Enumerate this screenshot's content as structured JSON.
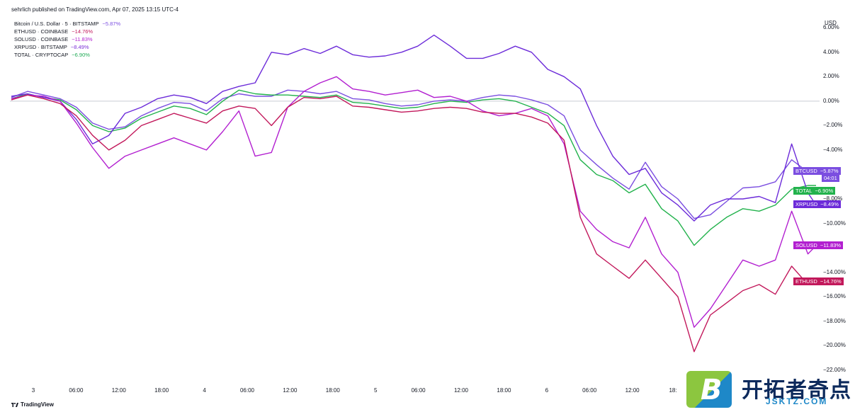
{
  "header": {
    "publish_text": "sehrlich published on TradingView.com, Apr 07, 2025 13:15 UTC-4"
  },
  "axis_unit": "USD",
  "legend": [
    {
      "label": "Bitcoin / U.S. Dollar · 5 · BITSTAMP",
      "value": "−5.87%",
      "color": "#7b4ee0"
    },
    {
      "label": "ETHUSD · COINBASE",
      "value": "−14.76%",
      "color": "#c2185b"
    },
    {
      "label": "SOLUSD · COINBASE",
      "value": "−11.83%",
      "color": "#b020d0"
    },
    {
      "label": "XRPUSD · BITSTAMP",
      "value": "−8.49%",
      "color": "#7a2fd6"
    },
    {
      "label": "TOTAL · CRYPTOCAP",
      "value": "−6.90%",
      "color": "#1faa55"
    }
  ],
  "badges": [
    {
      "ticker": "BTCUSD",
      "value": "−5.87%",
      "extra": "04:01",
      "color": "#7b4ee0"
    },
    {
      "ticker": "TOTAL",
      "value": "−6.90%",
      "color": "#22b24c"
    },
    {
      "ticker": "XRPUSD",
      "value": "−8.49%",
      "color": "#6c2bd9"
    },
    {
      "ticker": "SOLUSD",
      "value": "−11.83%",
      "color": "#b21fd0"
    },
    {
      "ticker": "ETHUSD",
      "value": "−14.76%",
      "color": "#c2185b"
    }
  ],
  "footer": {
    "brand": "TradingView"
  },
  "watermark": {
    "letter": "B",
    "cn_text": "开拓者奇点",
    "url": "JSKTZ.COM"
  },
  "chart_data": {
    "type": "line",
    "ylabel": "USD",
    "ylim": [
      -23,
      7
    ],
    "y_ticks": [
      "6.00%",
      "4.00%",
      "2.00%",
      "0.00%",
      "−2.00%",
      "−4.00%",
      "−8.00%",
      "−10.00%",
      "−14.00%",
      "−16.00%",
      "−18.00%",
      "−20.00%",
      "−22.00%"
    ],
    "x_ticks": [
      "3",
      "06:00",
      "12:00",
      "18:00",
      "4",
      "06:00",
      "12:00",
      "18:00",
      "5",
      "06:00",
      "12:00",
      "18:00",
      "6",
      "06:00",
      "12:00",
      "18:"
    ],
    "x_range": [
      0,
      99
    ],
    "zero_line": 0,
    "series": [
      {
        "name": "BTCUSD",
        "color": "#7b4ee0",
        "x": [
          0,
          2,
          4,
          6,
          8,
          10,
          12,
          14,
          16,
          18,
          20,
          22,
          24,
          26,
          28,
          30,
          32,
          34,
          36,
          38,
          40,
          42,
          44,
          46,
          48,
          50,
          52,
          54,
          56,
          58,
          60,
          62,
          64,
          66,
          68,
          70,
          72,
          74,
          76,
          78,
          80,
          82,
          84,
          86,
          88,
          90,
          92,
          94,
          96,
          98,
          99
        ],
        "values": [
          0.3,
          0.8,
          0.5,
          0.2,
          -0.5,
          -1.8,
          -2.3,
          -2.1,
          -1.2,
          -0.6,
          -0.1,
          -0.2,
          -0.8,
          0.2,
          0.6,
          0.4,
          0.4,
          0.9,
          0.8,
          0.6,
          0.8,
          0.2,
          0.1,
          -0.2,
          -0.4,
          -0.3,
          0.0,
          0.1,
          0.0,
          0.3,
          0.5,
          0.4,
          0.1,
          -0.3,
          -1.2,
          -4.0,
          -5.2,
          -6.3,
          -7.2,
          -5.0,
          -7.0,
          -8.0,
          -9.6,
          -9.3,
          -8.2,
          -7.1,
          -7.0,
          -6.6,
          -4.8,
          -5.8,
          -5.87
        ]
      },
      {
        "name": "TOTAL",
        "color": "#22b24c",
        "x": [
          0,
          2,
          4,
          6,
          8,
          10,
          12,
          14,
          16,
          18,
          20,
          22,
          24,
          26,
          28,
          30,
          32,
          34,
          36,
          38,
          40,
          42,
          44,
          46,
          48,
          50,
          52,
          54,
          56,
          58,
          60,
          62,
          64,
          66,
          68,
          70,
          72,
          74,
          76,
          78,
          80,
          82,
          84,
          86,
          88,
          90,
          92,
          94,
          96,
          98,
          99
        ],
        "values": [
          0.2,
          0.6,
          0.3,
          0.1,
          -0.7,
          -2.0,
          -2.5,
          -2.2,
          -1.4,
          -0.9,
          -0.4,
          -0.6,
          -1.1,
          0.0,
          0.9,
          0.6,
          0.5,
          0.5,
          0.4,
          0.3,
          0.5,
          -0.1,
          -0.2,
          -0.4,
          -0.6,
          -0.5,
          -0.2,
          0.0,
          -0.1,
          0.1,
          0.2,
          0.0,
          -0.5,
          -1.0,
          -2.0,
          -4.8,
          -6.0,
          -6.5,
          -7.5,
          -6.8,
          -8.8,
          -9.8,
          -11.8,
          -10.5,
          -9.5,
          -8.8,
          -9.0,
          -8.5,
          -7.2,
          -6.9,
          -6.9
        ]
      },
      {
        "name": "XRPUSD",
        "color": "#6c2bd9",
        "x": [
          0,
          2,
          4,
          6,
          8,
          10,
          12,
          14,
          16,
          18,
          20,
          22,
          24,
          26,
          28,
          30,
          32,
          34,
          36,
          38,
          40,
          42,
          44,
          46,
          48,
          50,
          52,
          54,
          56,
          58,
          60,
          62,
          64,
          66,
          68,
          70,
          72,
          74,
          76,
          78,
          80,
          82,
          84,
          86,
          88,
          90,
          92,
          94,
          96,
          98,
          99
        ],
        "values": [
          0.4,
          0.6,
          0.3,
          0.0,
          -1.5,
          -3.5,
          -2.8,
          -1.0,
          -0.5,
          0.2,
          0.5,
          0.3,
          -0.2,
          0.8,
          1.2,
          1.5,
          4.0,
          3.8,
          4.3,
          3.9,
          4.5,
          3.8,
          3.6,
          3.7,
          4.0,
          4.5,
          5.4,
          4.5,
          3.5,
          3.5,
          3.9,
          4.5,
          4.0,
          2.6,
          2.0,
          1.0,
          -2.0,
          -4.5,
          -6.0,
          -5.5,
          -7.5,
          -8.5,
          -9.8,
          -8.5,
          -8.0,
          -8.0,
          -7.8,
          -8.3,
          -3.5,
          -7.5,
          -8.49
        ]
      },
      {
        "name": "SOLUSD",
        "color": "#b21fd0",
        "x": [
          0,
          2,
          4,
          6,
          8,
          10,
          12,
          14,
          16,
          18,
          20,
          22,
          24,
          26,
          28,
          30,
          32,
          34,
          36,
          38,
          40,
          42,
          44,
          46,
          48,
          50,
          52,
          54,
          56,
          58,
          60,
          62,
          64,
          66,
          68,
          70,
          72,
          74,
          76,
          78,
          80,
          82,
          84,
          86,
          88,
          90,
          92,
          94,
          96,
          98,
          99
        ],
        "values": [
          0.2,
          0.5,
          0.4,
          0.0,
          -1.8,
          -3.8,
          -5.5,
          -4.5,
          -4.0,
          -3.5,
          -3.0,
          -3.5,
          -4.0,
          -2.5,
          -0.8,
          -4.5,
          -4.2,
          -0.5,
          0.8,
          1.5,
          2.0,
          1.0,
          0.8,
          0.5,
          0.7,
          0.9,
          0.3,
          0.4,
          0.0,
          -0.8,
          -1.2,
          -1.0,
          -0.6,
          -1.2,
          -3.5,
          -9.0,
          -10.5,
          -11.5,
          -12.0,
          -9.5,
          -12.5,
          -14.0,
          -18.5,
          -17.0,
          -15.0,
          -13.0,
          -13.5,
          -13.0,
          -9.0,
          -12.5,
          -11.83
        ]
      },
      {
        "name": "ETHUSD",
        "color": "#c2185b",
        "x": [
          0,
          2,
          4,
          6,
          8,
          10,
          12,
          14,
          16,
          18,
          20,
          22,
          24,
          26,
          28,
          30,
          32,
          34,
          36,
          38,
          40,
          42,
          44,
          46,
          48,
          50,
          52,
          54,
          56,
          58,
          60,
          62,
          64,
          66,
          68,
          70,
          72,
          74,
          76,
          78,
          80,
          82,
          84,
          86,
          88,
          90,
          92,
          94,
          96,
          98,
          99
        ],
        "values": [
          0.1,
          0.5,
          0.2,
          -0.2,
          -1.2,
          -2.8,
          -4.0,
          -3.2,
          -2.0,
          -1.5,
          -1.0,
          -1.4,
          -1.8,
          -0.8,
          -0.4,
          -0.6,
          -2.0,
          -0.5,
          0.3,
          0.2,
          0.4,
          -0.4,
          -0.5,
          -0.7,
          -0.9,
          -0.8,
          -0.6,
          -0.5,
          -0.6,
          -0.9,
          -1.0,
          -1.0,
          -1.3,
          -1.8,
          -3.2,
          -9.5,
          -12.5,
          -13.5,
          -14.5,
          -13.0,
          -14.5,
          -16.0,
          -20.5,
          -17.5,
          -16.5,
          -15.5,
          -15.0,
          -15.8,
          -13.5,
          -15.0,
          -14.76
        ]
      }
    ]
  }
}
